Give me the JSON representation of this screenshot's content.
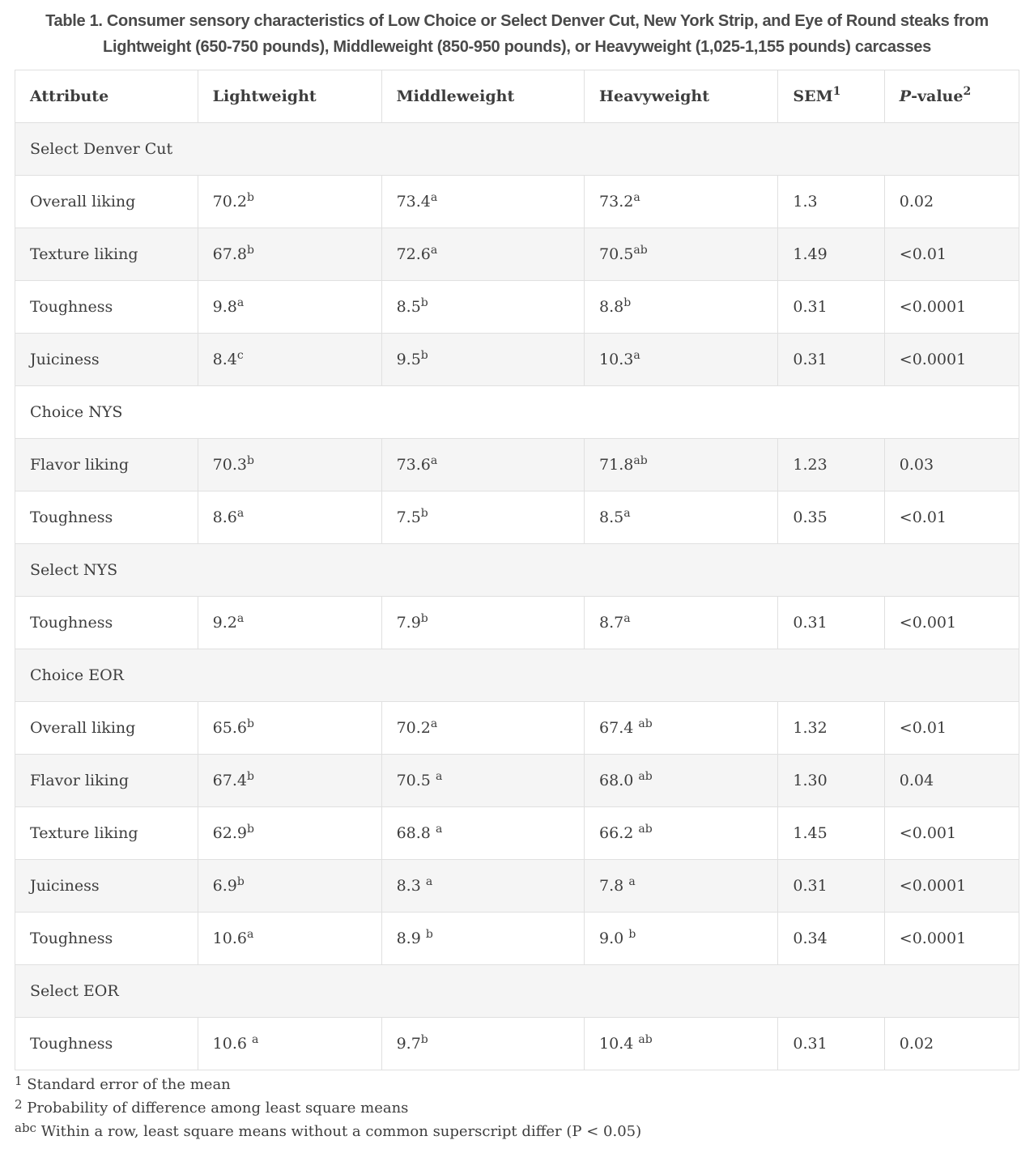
{
  "title": "Table 1. Consumer sensory characteristics of Low Choice or Select Denver Cut, New York Strip, and Eye of Round steaks from Lightweight (650-750 pounds), Middleweight (850-950 pounds), or Heavyweight (1,025-1,155 pounds) carcasses",
  "colors": {
    "page_bg": "#ffffff",
    "stripe_bg": "#f5f5f5",
    "border": "#e0e0e0",
    "text": "#3d3d3d",
    "title_text": "#4a4a4a"
  },
  "table": {
    "columns": [
      {
        "label": "Attribute"
      },
      {
        "label": "Lightweight"
      },
      {
        "label": "Middleweight"
      },
      {
        "label": "Heavyweight"
      },
      {
        "label": "SEM",
        "sup": "1"
      },
      {
        "italic_prefix": "P",
        "label": "-value",
        "sup": "2"
      }
    ],
    "rows": [
      {
        "type": "section",
        "label": "Select Denver Cut"
      },
      {
        "type": "data",
        "attribute": "Overall liking",
        "values": [
          {
            "v": "70.2",
            "s": "b"
          },
          {
            "v": "73.4",
            "s": "a"
          },
          {
            "v": "73.2",
            "s": "a"
          }
        ],
        "sem": "1.3",
        "p": "0.02"
      },
      {
        "type": "data",
        "attribute": "Texture liking",
        "values": [
          {
            "v": "67.8",
            "s": "b"
          },
          {
            "v": "72.6",
            "s": "a"
          },
          {
            "v": "70.5",
            "s": "ab"
          }
        ],
        "sem": "1.49",
        "p": "<0.01"
      },
      {
        "type": "data",
        "attribute": "Toughness",
        "values": [
          {
            "v": "9.8",
            "s": "a"
          },
          {
            "v": "8.5",
            "s": "b"
          },
          {
            "v": "8.8",
            "s": "b"
          }
        ],
        "sem": "0.31",
        "p": "<0.0001"
      },
      {
        "type": "data",
        "attribute": "Juiciness",
        "values": [
          {
            "v": "8.4",
            "s": "c"
          },
          {
            "v": "9.5",
            "s": "b"
          },
          {
            "v": "10.3",
            "s": "a"
          }
        ],
        "sem": "0.31",
        "p": "<0.0001"
      },
      {
        "type": "section",
        "label": "Choice NYS"
      },
      {
        "type": "data",
        "attribute": "Flavor liking",
        "values": [
          {
            "v": "70.3",
            "s": "b"
          },
          {
            "v": "73.6",
            "s": "a"
          },
          {
            "v": "71.8",
            "s": "ab"
          }
        ],
        "sem": "1.23",
        "p": "0.03"
      },
      {
        "type": "data",
        "attribute": "Toughness",
        "values": [
          {
            "v": "8.6",
            "s": "a"
          },
          {
            "v": "7.5",
            "s": "b"
          },
          {
            "v": "8.5",
            "s": "a"
          }
        ],
        "sem": "0.35",
        "p": "<0.01"
      },
      {
        "type": "section",
        "label": "Select NYS"
      },
      {
        "type": "data",
        "attribute": "Toughness",
        "values": [
          {
            "v": "9.2",
            "s": "a"
          },
          {
            "v": "7.9",
            "s": "b"
          },
          {
            "v": "8.7",
            "s": "a"
          }
        ],
        "sem": "0.31",
        "p": "<0.001"
      },
      {
        "type": "section",
        "label": "Choice EOR"
      },
      {
        "type": "data",
        "attribute": "Overall liking",
        "values": [
          {
            "v": "65.6",
            "s": "b"
          },
          {
            "v": "70.2",
            "s": "a"
          },
          {
            "v": "67.4",
            "s": "ab",
            "gap": true
          }
        ],
        "sem": "1.32",
        "p": "<0.01"
      },
      {
        "type": "data",
        "attribute": "Flavor liking",
        "values": [
          {
            "v": "67.4",
            "s": "b"
          },
          {
            "v": "70.5",
            "s": "a",
            "gap": true
          },
          {
            "v": "68.0",
            "s": "ab",
            "gap": true
          }
        ],
        "sem": "1.30",
        "p": "0.04"
      },
      {
        "type": "data",
        "attribute": "Texture liking",
        "values": [
          {
            "v": "62.9",
            "s": "b"
          },
          {
            "v": "68.8",
            "s": "a",
            "gap": true
          },
          {
            "v": "66.2",
            "s": "ab",
            "gap": true
          }
        ],
        "sem": "1.45",
        "p": "<0.001"
      },
      {
        "type": "data",
        "attribute": "Juiciness",
        "values": [
          {
            "v": "6.9",
            "s": "b"
          },
          {
            "v": "8.3",
            "s": "a",
            "gap": true
          },
          {
            "v": "7.8",
            "s": "a",
            "gap": true
          }
        ],
        "sem": "0.31",
        "p": "<0.0001"
      },
      {
        "type": "data",
        "attribute": "Toughness",
        "values": [
          {
            "v": "10.6",
            "s": "a"
          },
          {
            "v": "8.9",
            "s": "b",
            "gap": true
          },
          {
            "v": "9.0",
            "s": "b",
            "gap": true
          }
        ],
        "sem": "0.34",
        "p": "<0.0001"
      },
      {
        "type": "section",
        "label": "Select EOR"
      },
      {
        "type": "data",
        "attribute": "Toughness",
        "values": [
          {
            "v": "10.6",
            "s": "a",
            "gap": true
          },
          {
            "v": "9.7",
            "s": "b"
          },
          {
            "v": "10.4",
            "s": "ab",
            "gap": true
          }
        ],
        "sem": "0.31",
        "p": "0.02"
      }
    ]
  },
  "footnotes": [
    {
      "sup": "1",
      "text": "Standard error of the mean"
    },
    {
      "sup": "2",
      "text": "Probability of difference among least square means"
    },
    {
      "sup": "abc",
      "text": "Within a row, least square means without a common superscript differ (P < 0.05)"
    }
  ]
}
